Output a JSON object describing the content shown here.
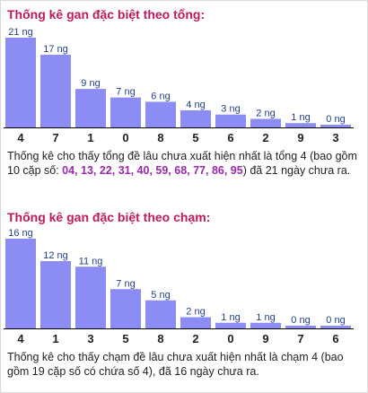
{
  "colors": {
    "bar": "#8c8cf5",
    "value_label": "#1f3f8f",
    "title": "#c2185b",
    "highlight": "#9c27b0",
    "axis": "#000000"
  },
  "section1": {
    "title": "Thống kê gan đặc biệt theo tổng:",
    "desc_before": "Thống kê cho thấy tổng đề lâu chưa xuất hiện nhất là tổng 4 (bao gồm 10 cặp số: ",
    "desc_numbers": "04, 13, 22, 31, 40, 59, 68, 77, 86, 95",
    "desc_after": ") đã 21 ngày chưa ra."
  },
  "section2": {
    "title": "Thống kê gan đặc biệt theo chạm:",
    "desc": "Thống kê cho thấy chạm đề lâu chưa xuất hiện nhất là chạm 4 (bao gồm 19 cặp số có chứa số 4), đã 16 ngày chưa ra."
  },
  "chart_data": [
    {
      "type": "bar",
      "title": "Thống kê gan đặc biệt theo tổng:",
      "categories": [
        "4",
        "7",
        "1",
        "0",
        "8",
        "5",
        "6",
        "2",
        "9",
        "3"
      ],
      "values": [
        21,
        17,
        9,
        7,
        6,
        4,
        3,
        2,
        1,
        0
      ],
      "value_labels": [
        "21 ng",
        "17 ng",
        "9 ng",
        "7 ng",
        "6 ng",
        "4 ng",
        "3 ng",
        "2 ng",
        "1 ng",
        "0 ng"
      ],
      "ylim": [
        0,
        21
      ],
      "grid": false,
      "legend": "none"
    },
    {
      "type": "bar",
      "title": "Thống kê gan đặc biệt theo chạm:",
      "categories": [
        "4",
        "1",
        "3",
        "5",
        "8",
        "2",
        "0",
        "9",
        "7",
        "6"
      ],
      "values": [
        16,
        12,
        11,
        7,
        5,
        2,
        1,
        1,
        0,
        0
      ],
      "value_labels": [
        "16 ng",
        "12 ng",
        "11 ng",
        "7 ng",
        "5 ng",
        "2 ng",
        "1 ng",
        "1 ng",
        "0 ng",
        "0 ng"
      ],
      "ylim": [
        0,
        16
      ],
      "grid": false,
      "legend": "none"
    }
  ]
}
